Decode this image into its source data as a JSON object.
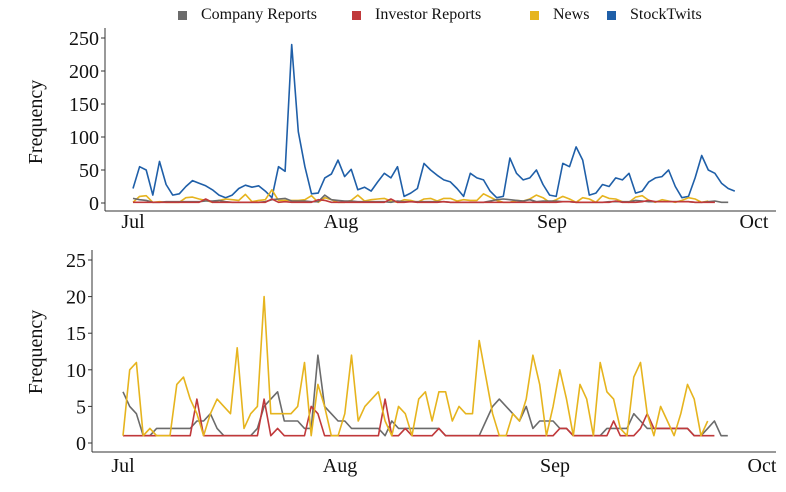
{
  "legend": [
    {
      "name": "Company Reports",
      "color": "#6b6b6b"
    },
    {
      "name": "Investor Reports",
      "color": "#c0393b"
    },
    {
      "name": "News",
      "color": "#e6b41e"
    },
    {
      "name": "StockTwits",
      "color": "#1f5fa8"
    }
  ],
  "chart_data": [
    {
      "type": "line",
      "ylabel": "Frequency",
      "xlabel": "",
      "xticks": [
        "Jul",
        "Aug",
        "Sep",
        "Oct"
      ],
      "yticks": [
        0,
        50,
        100,
        150,
        200,
        250
      ],
      "xlim": [
        0,
        93
      ],
      "ylim": [
        0,
        250
      ],
      "series": [
        {
          "name": "StockTwits",
          "color": "#1f5fa8",
          "values": [
            22,
            55,
            50,
            12,
            63,
            28,
            12,
            14,
            25,
            34,
            30,
            26,
            20,
            12,
            8,
            12,
            22,
            27,
            24,
            26,
            18,
            8,
            55,
            48,
            240,
            108,
            55,
            14,
            15,
            38,
            44,
            65,
            40,
            51,
            20,
            24,
            18,
            32,
            45,
            38,
            55,
            10,
            15,
            22,
            60,
            50,
            42,
            35,
            32,
            22,
            10,
            45,
            38,
            35,
            18,
            8,
            10,
            68,
            45,
            35,
            38,
            50,
            28,
            12,
            10,
            60,
            55,
            85,
            65,
            12,
            15,
            28,
            25,
            38,
            35,
            45,
            15,
            18,
            32,
            38,
            40,
            50,
            25,
            8,
            10,
            38,
            72,
            50,
            45,
            30,
            22,
            18
          ]
        },
        {
          "name": "News",
          "color": "#e6b41e",
          "values": [
            1,
            10,
            11,
            1,
            2,
            1,
            1,
            1,
            8,
            9,
            6,
            4,
            1,
            4,
            6,
            5,
            4,
            13,
            2,
            4,
            5,
            20,
            4,
            4,
            4,
            4,
            5,
            11,
            1,
            8,
            5,
            1,
            1,
            4,
            12,
            3,
            5,
            6,
            7,
            3,
            1,
            5,
            4,
            1,
            6,
            7,
            3,
            7,
            7,
            3,
            5,
            4,
            4,
            14,
            9,
            4,
            1,
            1,
            4,
            3,
            6,
            12,
            8,
            1,
            5,
            10,
            6,
            1,
            8,
            6,
            1,
            11,
            7,
            6,
            2,
            1,
            9,
            11,
            4,
            1,
            5,
            3,
            1,
            4,
            8,
            6,
            1,
            3
          ]
        },
        {
          "name": "Company Reports",
          "color": "#6b6b6b",
          "values": [
            7,
            5,
            4,
            1,
            1,
            2,
            2,
            2,
            2,
            2,
            2,
            3,
            3,
            4,
            2,
            1,
            1,
            1,
            1,
            1,
            2,
            5,
            6,
            7,
            3,
            3,
            3,
            2,
            2,
            12,
            5,
            4,
            3,
            3,
            2,
            2,
            2,
            2,
            2,
            1,
            3,
            2,
            2,
            2,
            2,
            2,
            2,
            2,
            1,
            1,
            1,
            1,
            1,
            1,
            3,
            5,
            6,
            5,
            4,
            3,
            5,
            2,
            3,
            3,
            3,
            2,
            2,
            1,
            1,
            1,
            1,
            1,
            2,
            2,
            2,
            2,
            4,
            3,
            2,
            2,
            2,
            2,
            2,
            2,
            2,
            1,
            1,
            2,
            3,
            1,
            1
          ]
        },
        {
          "name": "Investor Reports",
          "color": "#c0393b",
          "values": [
            1,
            1,
            1,
            1,
            1,
            1,
            1,
            1,
            1,
            1,
            1,
            6,
            1,
            1,
            1,
            1,
            1,
            1,
            1,
            1,
            1,
            6,
            1,
            2,
            1,
            1,
            1,
            1,
            5,
            4,
            1,
            1,
            1,
            1,
            1,
            1,
            1,
            1,
            1,
            6,
            1,
            1,
            2,
            1,
            1,
            1,
            1,
            2,
            1,
            1,
            1,
            1,
            1,
            1,
            1,
            1,
            1,
            1,
            1,
            1,
            1,
            1,
            1,
            1,
            1,
            2,
            2,
            1,
            1,
            1,
            1,
            1,
            1,
            3,
            1,
            1,
            1,
            2,
            4,
            2,
            2,
            2,
            2,
            2,
            2,
            1,
            1,
            1,
            1
          ]
        }
      ]
    },
    {
      "type": "line",
      "ylabel": "Frequency",
      "xlabel": "",
      "xticks": [
        "Jul",
        "Aug",
        "Sep",
        "Oct"
      ],
      "yticks": [
        0,
        5,
        10,
        15,
        20,
        25
      ],
      "xlim": [
        0,
        93
      ],
      "ylim": [
        0,
        25
      ],
      "series": [
        {
          "name": "Company Reports",
          "color": "#6b6b6b",
          "values": [
            7,
            5,
            4,
            1,
            1,
            2,
            2,
            2,
            2,
            2,
            2,
            3,
            3,
            4,
            2,
            1,
            1,
            1,
            1,
            1,
            2,
            5,
            6,
            7,
            3,
            3,
            3,
            2,
            2,
            12,
            5,
            4,
            3,
            3,
            2,
            2,
            2,
            2,
            2,
            1,
            3,
            2,
            2,
            2,
            2,
            2,
            2,
            2,
            1,
            1,
            1,
            1,
            1,
            1,
            3,
            5,
            6,
            5,
            4,
            3,
            5,
            2,
            3,
            3,
            3,
            2,
            2,
            1,
            1,
            1,
            1,
            1,
            2,
            2,
            2,
            2,
            4,
            3,
            2,
            2,
            2,
            2,
            2,
            2,
            2,
            1,
            1,
            2,
            3,
            1,
            1
          ]
        },
        {
          "name": "Investor Reports",
          "color": "#c0393b",
          "values": [
            1,
            1,
            1,
            1,
            1,
            1,
            1,
            1,
            1,
            1,
            1,
            6,
            1,
            1,
            1,
            1,
            1,
            1,
            1,
            1,
            1,
            6,
            1,
            2,
            1,
            1,
            1,
            1,
            5,
            4,
            1,
            1,
            1,
            1,
            1,
            1,
            1,
            1,
            1,
            6,
            1,
            1,
            2,
            1,
            1,
            1,
            1,
            2,
            1,
            1,
            1,
            1,
            1,
            1,
            1,
            1,
            1,
            1,
            1,
            1,
            1,
            1,
            1,
            1,
            1,
            2,
            2,
            1,
            1,
            1,
            1,
            1,
            1,
            3,
            1,
            1,
            1,
            2,
            4,
            2,
            2,
            2,
            2,
            2,
            2,
            1,
            1,
            1,
            1
          ]
        },
        {
          "name": "News",
          "color": "#e6b41e",
          "values": [
            1,
            10,
            11,
            1,
            2,
            1,
            1,
            1,
            8,
            9,
            6,
            4,
            1,
            4,
            6,
            5,
            4,
            13,
            2,
            4,
            5,
            20,
            4,
            4,
            4,
            4,
            5,
            11,
            1,
            8,
            5,
            1,
            1,
            4,
            12,
            3,
            5,
            6,
            7,
            3,
            1,
            5,
            4,
            1,
            6,
            7,
            3,
            7,
            7,
            3,
            5,
            4,
            4,
            14,
            9,
            4,
            1,
            1,
            4,
            3,
            6,
            12,
            8,
            1,
            5,
            10,
            6,
            1,
            8,
            6,
            1,
            11,
            7,
            6,
            2,
            1,
            9,
            11,
            4,
            1,
            5,
            3,
            1,
            4,
            8,
            6,
            1,
            3
          ]
        }
      ]
    }
  ]
}
